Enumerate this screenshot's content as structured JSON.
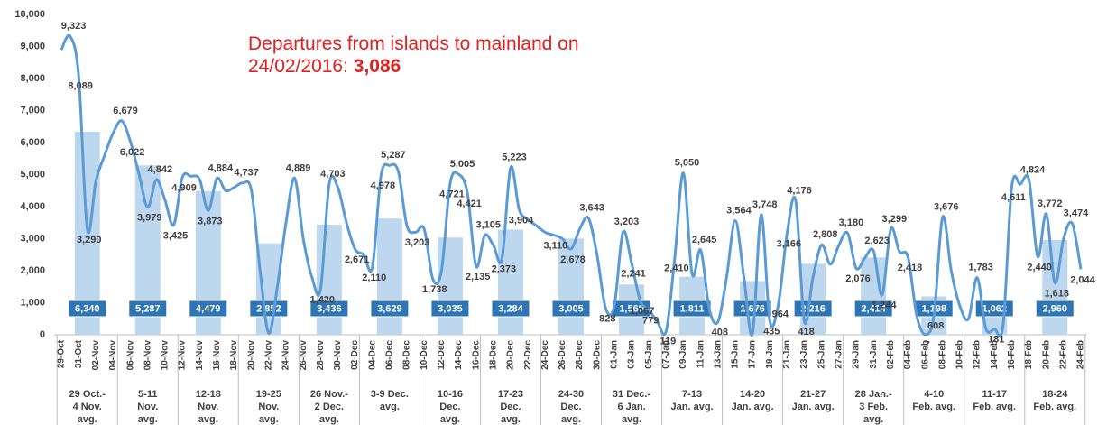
{
  "chart_data": [
    {
      "type": "bar",
      "categories": [
        [
          "29 Oct.-",
          "4 Nov.",
          "avg."
        ],
        [
          "5-11",
          "Nov.",
          "avg."
        ],
        [
          "12-18",
          "Nov.",
          "avg."
        ],
        [
          "19-25",
          "Nov.",
          "avg."
        ],
        [
          "26 Nov.-",
          "2 Dec.",
          "avg."
        ],
        [
          "3-9 Dec.",
          "avg."
        ],
        [
          "10-16",
          "Dec.",
          "avg."
        ],
        [
          "17-23",
          "Dec.",
          "avg."
        ],
        [
          "24-30",
          "Dec.",
          "avg."
        ],
        [
          "31 Dec.-",
          "6 Jan.",
          "avg."
        ],
        [
          "7-13",
          "Jan. avg."
        ],
        [
          "14-20",
          "Jan. avg."
        ],
        [
          "21-27",
          "Jan. avg."
        ],
        [
          "28 Jan.-",
          "3 Feb.",
          "avg."
        ],
        [
          "4-10",
          "Feb. avg."
        ],
        [
          "11-17",
          "Feb. avg."
        ],
        [
          "18-24",
          "Feb. avg."
        ]
      ],
      "values": [
        6340,
        5287,
        4479,
        2852,
        3436,
        3629,
        3035,
        3284,
        3005,
        1569,
        1811,
        1676,
        2216,
        2414,
        1198,
        1062,
        2960
      ],
      "value_labels": [
        "6,340",
        "5,287",
        "4,479",
        "2,852",
        "3,436",
        "3,629",
        "3,035",
        "3,284",
        "3,005",
        "1,569",
        "1,811",
        "1,676",
        "2,216",
        "2,414",
        "1,198",
        "1,062",
        "2,960"
      ],
      "color": "#bdd7ee",
      "label_color": "#2e75b6",
      "ylim": [
        0,
        10000
      ],
      "yticks": [
        0,
        {
          "value": 1000,
          "label": "1,000"
        },
        {
          "value": 2000,
          "label": "2,000"
        },
        {
          "value": 3000,
          "label": "3,000"
        },
        {
          "value": 4000,
          "label": "4,000"
        },
        {
          "value": 5000,
          "label": "5,000"
        },
        {
          "value": 6000,
          "label": "6,000"
        },
        {
          "value": 7000,
          "label": "7,000"
        },
        {
          "value": 8000,
          "label": "8,000"
        },
        {
          "value": 9000,
          "label": "9,000"
        },
        {
          "value": 10000,
          "label": "10,000"
        }
      ]
    },
    {
      "type": "line",
      "title": "Departures from islands to mainland on 24/02/2016:",
      "highlight": "3,086",
      "categories": [
        "29-Oct",
        null,
        "31-Oct",
        null,
        "02-Nov",
        null,
        "04-Nov",
        null,
        "06-Nov",
        null,
        "08-Nov",
        null,
        "10-Nov",
        null,
        "12-Nov",
        null,
        "14-Nov",
        null,
        "16-Nov",
        null,
        "18-Nov",
        null,
        "20-Nov",
        null,
        "22-Nov",
        null,
        "24-Nov",
        null,
        "26-Nov",
        null,
        "28-Nov",
        null,
        "30-Nov",
        null,
        "02-Dec",
        null,
        "04-Dec",
        null,
        "06-Dec",
        null,
        "08-Dec",
        null,
        "10-Dec",
        null,
        "12-Dec",
        null,
        "14-Dec",
        null,
        "16-Dec",
        null,
        "18-Dec",
        null,
        "20-Dec",
        null,
        "22-Dec",
        null,
        "24-Dec",
        null,
        "26-Dec",
        null,
        "28-Dec",
        null,
        "30-Dec",
        null,
        "01-Jan",
        null,
        "03-Jan",
        null,
        "05-Jan",
        null,
        "07-Jan",
        null,
        "09-Jan",
        null,
        "11-Jan",
        null,
        "13-Jan",
        null,
        "15-Jan",
        null,
        "17-Jan",
        null,
        "19-Jan",
        null,
        "21-Jan",
        null,
        "23-Jan",
        null,
        "25-Jan",
        null,
        "27-Jan",
        null,
        "29-Jan",
        null,
        "31-Jan",
        null,
        "02-Feb",
        null,
        "04-Feb",
        null,
        "06-Feb",
        null,
        "08-Feb",
        null,
        "10-Feb",
        null,
        "12-Feb",
        null,
        "14-Feb",
        null,
        "16-Feb",
        null,
        "18-Feb",
        null,
        "20-Feb",
        null,
        "22-Feb",
        null,
        "24-Feb"
      ],
      "values": [
        8900,
        9323,
        8089,
        3290,
        4800,
        5600,
        6300,
        6679,
        6022,
        5000,
        3979,
        4842,
        4200,
        3425,
        4909,
        4950,
        4850,
        3873,
        4884,
        4500,
        4600,
        4737,
        4500,
        2000,
        50,
        1500,
        3500,
        4889,
        3000,
        1800,
        1420,
        4703,
        4600,
        3500,
        2671,
        2500,
        2110,
        4978,
        5287,
        5100,
        3400,
        3203,
        3300,
        1738,
        2000,
        4721,
        5005,
        4421,
        2135,
        3105,
        2800,
        2373,
        5223,
        3904,
        3600,
        3400,
        3200,
        3110,
        3000,
        2678,
        3300,
        3643,
        2500,
        828,
        900,
        3203,
        2241,
        1067,
        779,
        400,
        119,
        2410,
        5050,
        1900,
        2645,
        800,
        408,
        1800,
        3564,
        1800,
        30,
        3748,
        435,
        964,
        3166,
        4176,
        418,
        1800,
        2808,
        2200,
        2800,
        3180,
        2076,
        2400,
        2623,
        1244,
        3299,
        2600,
        2418,
        600,
        7,
        608,
        3676,
        2000,
        900,
        500,
        1783,
        200,
        181,
        300,
        4611,
        4700,
        4824,
        2440,
        3772,
        1618,
        3000,
        3474,
        2044
      ],
      "value_labels": [
        null,
        "9,323",
        "8,089",
        "3,290",
        null,
        null,
        null,
        "6,679",
        "6,022",
        null,
        "3,979",
        "4,842",
        null,
        "3,425",
        "4,909",
        null,
        null,
        "3,873",
        "4,884",
        null,
        null,
        "4,737",
        null,
        null,
        null,
        null,
        null,
        "4,889",
        null,
        null,
        "1,420",
        "4,703",
        null,
        null,
        "2,671",
        null,
        "2,110",
        "4,978",
        "5,287",
        null,
        null,
        "3,203",
        null,
        "1,738",
        null,
        "4,721",
        "5,005",
        "4,421",
        "2,135",
        "3,105",
        null,
        "2,373",
        "5,223",
        "3,904",
        null,
        null,
        null,
        "3,110",
        null,
        "2,678",
        null,
        "3,643",
        null,
        "828",
        null,
        "3,203",
        "2,241",
        "1,067",
        "779",
        null,
        "119",
        "2,410",
        "5,050",
        null,
        "2,645",
        null,
        "408",
        null,
        "3,564",
        null,
        null,
        "3,748",
        "435",
        "964",
        "3,166",
        "4,176",
        "418",
        null,
        "2,808",
        null,
        null,
        "3,180",
        "2,076",
        null,
        "2,623",
        "1,244",
        "3,299",
        null,
        "2,418",
        null,
        "7",
        "608",
        "3,676",
        null,
        null,
        null,
        "1,783",
        null,
        "181",
        null,
        "4,611",
        null,
        "4,824",
        "2,440",
        "3,772",
        "1,618",
        null,
        "3,474",
        "2,044"
      ],
      "color": "#5b9bd5",
      "ylim": [
        0,
        10000
      ]
    }
  ]
}
